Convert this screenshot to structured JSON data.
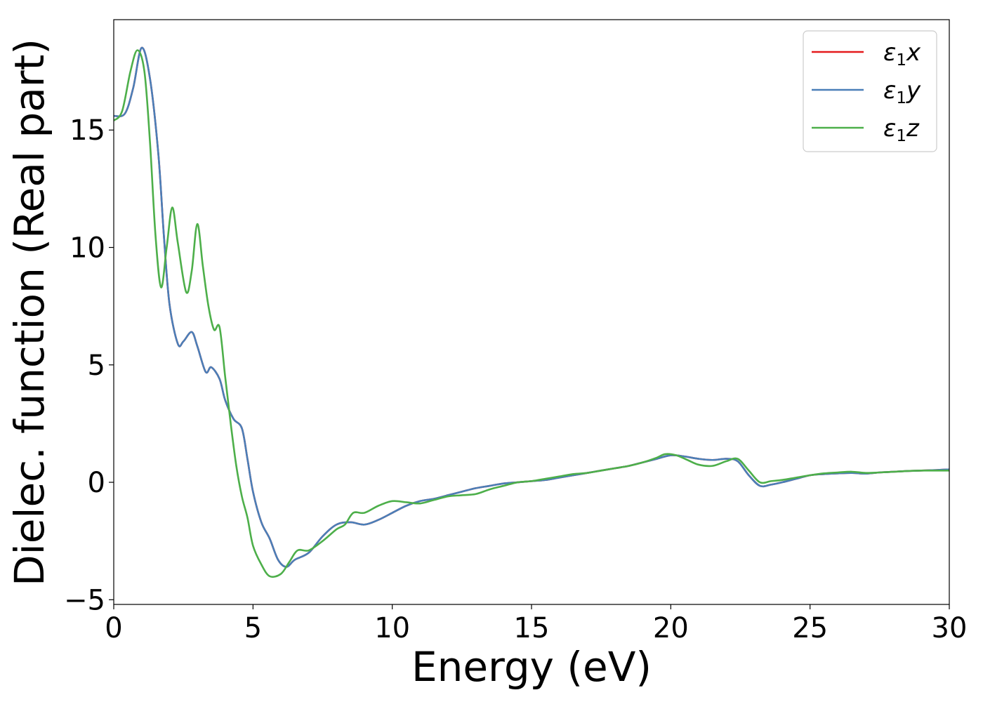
{
  "chart_data": {
    "type": "line",
    "xlabel": "Energy (eV)",
    "ylabel": "Dielec. function (Real part)",
    "xlim": [
      0,
      30
    ],
    "ylim": [
      -5.2,
      19.7
    ],
    "x_ticks": [
      0,
      5,
      10,
      15,
      20,
      25,
      30
    ],
    "x_tick_labels": [
      "0",
      "5",
      "10",
      "15",
      "20",
      "25",
      "30"
    ],
    "y_ticks": [
      -5,
      0,
      5,
      10,
      15
    ],
    "y_tick_labels": [
      "−5",
      "0",
      "5",
      "10",
      "15"
    ],
    "grid": false,
    "legend_position": "top-right",
    "series": [
      {
        "name": "ε1x",
        "legend_base": "ε",
        "legend_sub": "1",
        "legend_var": "x",
        "color": "#e41a1c",
        "x": [
          0,
          0.4,
          0.7,
          1.0,
          1.3,
          1.6,
          1.8,
          2.0,
          2.3,
          2.5,
          2.8,
          3.0,
          3.3,
          3.5,
          3.8,
          4.0,
          4.3,
          4.6,
          4.8,
          5.0,
          5.3,
          5.6,
          5.9,
          6.2,
          6.5,
          7.0,
          7.5,
          8.0,
          8.5,
          9.0,
          9.5,
          10.0,
          10.5,
          11.0,
          11.5,
          12.0,
          12.5,
          13.0,
          13.5,
          14.0,
          14.5,
          15.0,
          15.5,
          16.0,
          16.5,
          17.0,
          17.5,
          18.0,
          18.5,
          19.0,
          19.5,
          20.0,
          20.5,
          21.0,
          21.5,
          22.0,
          22.4,
          22.8,
          23.2,
          23.6,
          24.0,
          24.5,
          25.0,
          25.5,
          26.0,
          26.5,
          27.0,
          27.5,
          28.0,
          28.5,
          29.0,
          29.5,
          30.0
        ],
        "y": [
          15.6,
          15.7,
          16.8,
          18.5,
          17.2,
          14.0,
          10.5,
          7.6,
          5.9,
          6.0,
          6.4,
          5.8,
          4.7,
          4.9,
          4.4,
          3.5,
          2.7,
          2.3,
          1.0,
          -0.4,
          -1.7,
          -2.4,
          -3.3,
          -3.6,
          -3.3,
          -3.0,
          -2.3,
          -1.8,
          -1.7,
          -1.8,
          -1.6,
          -1.3,
          -1.0,
          -0.8,
          -0.7,
          -0.55,
          -0.4,
          -0.25,
          -0.15,
          -0.05,
          0.0,
          0.05,
          0.1,
          0.2,
          0.3,
          0.4,
          0.5,
          0.6,
          0.7,
          0.85,
          1.0,
          1.15,
          1.1,
          1.0,
          0.95,
          1.0,
          0.9,
          0.3,
          -0.15,
          -0.1,
          0.0,
          0.15,
          0.3,
          0.35,
          0.38,
          0.4,
          0.37,
          0.42,
          0.45,
          0.48,
          0.5,
          0.52,
          0.55
        ]
      },
      {
        "name": "ε1y",
        "legend_base": "ε",
        "legend_sub": "1",
        "legend_var": "y",
        "color": "#4a7fb8",
        "x": [
          0,
          0.4,
          0.7,
          1.0,
          1.3,
          1.6,
          1.8,
          2.0,
          2.3,
          2.5,
          2.8,
          3.0,
          3.3,
          3.5,
          3.8,
          4.0,
          4.3,
          4.6,
          4.8,
          5.0,
          5.3,
          5.6,
          5.9,
          6.2,
          6.5,
          7.0,
          7.5,
          8.0,
          8.5,
          9.0,
          9.5,
          10.0,
          10.5,
          11.0,
          11.5,
          12.0,
          12.5,
          13.0,
          13.5,
          14.0,
          14.5,
          15.0,
          15.5,
          16.0,
          16.5,
          17.0,
          17.5,
          18.0,
          18.5,
          19.0,
          19.5,
          20.0,
          20.5,
          21.0,
          21.5,
          22.0,
          22.4,
          22.8,
          23.2,
          23.6,
          24.0,
          24.5,
          25.0,
          25.5,
          26.0,
          26.5,
          27.0,
          27.5,
          28.0,
          28.5,
          29.0,
          29.5,
          30.0
        ],
        "y": [
          15.6,
          15.7,
          16.8,
          18.5,
          17.2,
          14.0,
          10.5,
          7.6,
          5.9,
          6.0,
          6.4,
          5.8,
          4.7,
          4.9,
          4.4,
          3.5,
          2.7,
          2.3,
          1.0,
          -0.4,
          -1.7,
          -2.4,
          -3.3,
          -3.6,
          -3.3,
          -3.0,
          -2.3,
          -1.8,
          -1.7,
          -1.8,
          -1.6,
          -1.3,
          -1.0,
          -0.8,
          -0.7,
          -0.55,
          -0.4,
          -0.25,
          -0.15,
          -0.05,
          0.0,
          0.05,
          0.1,
          0.2,
          0.3,
          0.4,
          0.5,
          0.6,
          0.7,
          0.85,
          1.0,
          1.15,
          1.1,
          1.0,
          0.95,
          1.0,
          0.9,
          0.3,
          -0.15,
          -0.1,
          0.0,
          0.15,
          0.3,
          0.35,
          0.38,
          0.4,
          0.37,
          0.42,
          0.45,
          0.48,
          0.5,
          0.52,
          0.55
        ]
      },
      {
        "name": "ε1z",
        "legend_base": "ε",
        "legend_sub": "1",
        "legend_var": "z",
        "color": "#4daf4a",
        "x": [
          0,
          0.3,
          0.6,
          0.85,
          1.1,
          1.3,
          1.5,
          1.7,
          1.9,
          2.1,
          2.3,
          2.6,
          2.8,
          3.0,
          3.2,
          3.4,
          3.6,
          3.8,
          4.0,
          4.2,
          4.4,
          4.6,
          4.8,
          5.0,
          5.3,
          5.6,
          6.0,
          6.3,
          6.6,
          7.0,
          7.5,
          8.0,
          8.3,
          8.6,
          9.0,
          9.5,
          10.0,
          10.5,
          11.0,
          11.5,
          12.0,
          12.5,
          13.0,
          13.5,
          14.0,
          14.5,
          15.0,
          15.5,
          16.0,
          16.5,
          17.0,
          17.5,
          18.0,
          18.5,
          19.0,
          19.5,
          19.8,
          20.2,
          20.6,
          21.0,
          21.5,
          22.0,
          22.4,
          22.8,
          23.2,
          23.6,
          24.0,
          24.5,
          25.0,
          25.5,
          26.0,
          26.5,
          27.0,
          27.5,
          28.0,
          28.5,
          29.0,
          29.5,
          30.0
        ],
        "y": [
          15.4,
          15.8,
          17.5,
          18.4,
          17.5,
          14.5,
          10.5,
          8.3,
          10.0,
          11.7,
          10.2,
          8.1,
          9.0,
          11.0,
          9.2,
          7.5,
          6.5,
          6.6,
          4.5,
          2.5,
          0.7,
          -0.6,
          -1.5,
          -2.7,
          -3.5,
          -4.0,
          -3.9,
          -3.4,
          -2.9,
          -2.9,
          -2.5,
          -2.0,
          -1.8,
          -1.3,
          -1.3,
          -1.0,
          -0.8,
          -0.85,
          -0.9,
          -0.75,
          -0.6,
          -0.55,
          -0.5,
          -0.3,
          -0.15,
          0.0,
          0.05,
          0.15,
          0.25,
          0.35,
          0.4,
          0.5,
          0.6,
          0.7,
          0.85,
          1.05,
          1.2,
          1.15,
          0.95,
          0.75,
          0.7,
          0.9,
          1.0,
          0.5,
          0.0,
          0.05,
          0.1,
          0.2,
          0.3,
          0.38,
          0.42,
          0.45,
          0.4,
          0.42,
          0.45,
          0.48,
          0.5,
          0.5,
          0.5
        ]
      }
    ]
  }
}
